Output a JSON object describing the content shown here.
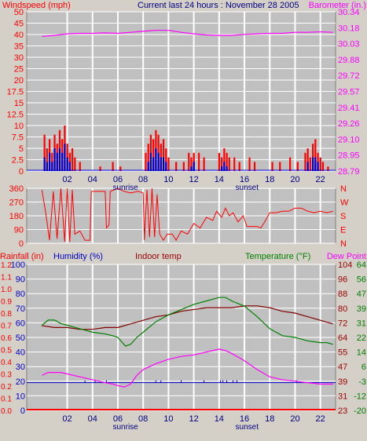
{
  "colors": {
    "bg": "#d4d0c8",
    "plot_bg": "#c0c0c0",
    "grid": "#ffffff",
    "red": "#ff0000",
    "blue": "#0000cc",
    "magenta": "#ff00ff",
    "green": "#008000",
    "darkred": "#800000",
    "maroon": "#990000",
    "purple": "#8000ff",
    "navy": "#000080"
  },
  "header": {
    "wind_label": "Windspeed (mph)",
    "title": "Current last 24 hours : November 28 2005",
    "baro_label": "Barometer (in.)"
  },
  "bottom_labels": {
    "rain": "Rainfall (in)",
    "humidity": "Humidity (%)",
    "indoor": "Indoor temp",
    "temperature": "Temperature (°F)",
    "dewpoint": "Dew Point"
  },
  "x_axis": {
    "ticks": [
      "02",
      "04",
      "06",
      "08",
      "10",
      "12",
      "14",
      "16",
      "18",
      "20",
      "22"
    ],
    "sunrise": "sunrise",
    "sunset": "sunset",
    "sunrise_hour": 6.6,
    "sunset_hour": 16.2
  },
  "chart_data": [
    {
      "type": "bar",
      "name": "wind-panel",
      "y_left_ticks": [
        "0",
        "2.5",
        "5",
        "7.5",
        "10",
        "12.5",
        "15",
        "17.5",
        "20",
        "25",
        "30",
        "35",
        "40",
        "45",
        "50"
      ],
      "y_right_ticks": [
        "28.79",
        "28.95",
        "29.10",
        "29.26",
        "29.41",
        "29.57",
        "29.72",
        "29.88",
        "30.03",
        "30.18",
        "30.34"
      ],
      "wind_gust_bars": [
        [
          0.2,
          8
        ],
        [
          0.4,
          5
        ],
        [
          0.6,
          7
        ],
        [
          0.8,
          4
        ],
        [
          1.0,
          8
        ],
        [
          1.2,
          6
        ],
        [
          1.4,
          9
        ],
        [
          1.6,
          7
        ],
        [
          1.8,
          10
        ],
        [
          2.0,
          6
        ],
        [
          2.2,
          4
        ],
        [
          2.4,
          5
        ],
        [
          2.6,
          3
        ],
        [
          3.0,
          2
        ],
        [
          4.6,
          1
        ],
        [
          5.6,
          2
        ],
        [
          6.2,
          1
        ],
        [
          8.2,
          4
        ],
        [
          8.4,
          6
        ],
        [
          8.6,
          8
        ],
        [
          8.8,
          7
        ],
        [
          9.0,
          9
        ],
        [
          9.2,
          8
        ],
        [
          9.4,
          6
        ],
        [
          9.6,
          7
        ],
        [
          9.8,
          5
        ],
        [
          10.0,
          3
        ],
        [
          10.6,
          2
        ],
        [
          11.2,
          2
        ],
        [
          11.6,
          4
        ],
        [
          11.8,
          3
        ],
        [
          12.0,
          4
        ],
        [
          12.4,
          4
        ],
        [
          12.8,
          3
        ],
        [
          14.0,
          4
        ],
        [
          14.2,
          3
        ],
        [
          14.4,
          5
        ],
        [
          14.6,
          4
        ],
        [
          14.8,
          3
        ],
        [
          15.2,
          3
        ],
        [
          15.6,
          2
        ],
        [
          16.4,
          3
        ],
        [
          16.8,
          2
        ],
        [
          18.2,
          2
        ],
        [
          18.8,
          2
        ],
        [
          19.6,
          3
        ],
        [
          20.2,
          2
        ],
        [
          20.8,
          4
        ],
        [
          21.0,
          5
        ],
        [
          21.2,
          3
        ],
        [
          21.4,
          6
        ],
        [
          21.6,
          7
        ],
        [
          21.8,
          4
        ],
        [
          22.0,
          3
        ],
        [
          22.2,
          2
        ],
        [
          22.6,
          1
        ]
      ],
      "wind_speed_bars": [
        [
          0.2,
          3
        ],
        [
          0.4,
          2
        ],
        [
          0.6,
          4
        ],
        [
          0.8,
          2
        ],
        [
          1.0,
          5
        ],
        [
          1.2,
          4
        ],
        [
          1.4,
          5
        ],
        [
          1.6,
          4
        ],
        [
          1.8,
          6
        ],
        [
          2.0,
          3
        ],
        [
          2.2,
          2
        ],
        [
          8.4,
          2
        ],
        [
          8.6,
          4
        ],
        [
          8.8,
          3
        ],
        [
          9.0,
          5
        ],
        [
          9.2,
          4
        ],
        [
          9.4,
          3
        ],
        [
          9.6,
          3
        ],
        [
          9.8,
          2
        ],
        [
          11.8,
          1
        ],
        [
          12.0,
          2
        ],
        [
          14.2,
          1
        ],
        [
          14.4,
          2
        ],
        [
          14.6,
          1
        ],
        [
          21.0,
          2
        ],
        [
          21.4,
          3
        ],
        [
          21.6,
          3
        ],
        [
          21.8,
          2
        ]
      ],
      "barometer": [
        [
          0.0,
          30.1
        ],
        [
          1.0,
          30.11
        ],
        [
          2.0,
          30.125
        ],
        [
          3.0,
          30.13
        ],
        [
          4.0,
          30.13
        ],
        [
          5.0,
          30.135
        ],
        [
          6.0,
          30.13
        ],
        [
          7.0,
          30.14
        ],
        [
          8.0,
          30.15
        ],
        [
          9.0,
          30.16
        ],
        [
          10.0,
          30.16
        ],
        [
          11.0,
          30.14
        ],
        [
          12.0,
          30.125
        ],
        [
          13.0,
          30.115
        ],
        [
          14.0,
          30.11
        ],
        [
          15.0,
          30.11
        ],
        [
          16.0,
          30.12
        ],
        [
          17.0,
          30.125
        ],
        [
          18.0,
          30.13
        ],
        [
          19.0,
          30.13
        ],
        [
          20.0,
          30.14
        ],
        [
          21.0,
          30.14
        ],
        [
          22.0,
          30.145
        ],
        [
          23.0,
          30.14
        ]
      ]
    },
    {
      "type": "line",
      "name": "wind-direction-panel",
      "y_left_ticks": [
        "0",
        "90",
        "180",
        "270",
        "360"
      ],
      "y_right_ticks": [
        "N",
        "E",
        "S",
        "W",
        "N"
      ],
      "direction": [
        [
          0.0,
          350
        ],
        [
          0.3,
          200
        ],
        [
          0.6,
          20
        ],
        [
          0.9,
          340
        ],
        [
          1.2,
          30
        ],
        [
          1.5,
          360
        ],
        [
          1.8,
          10
        ],
        [
          2.0,
          360
        ],
        [
          2.2,
          10
        ],
        [
          2.4,
          350
        ],
        [
          2.6,
          60
        ],
        [
          3.0,
          80
        ],
        [
          3.4,
          20
        ],
        [
          3.8,
          20
        ],
        [
          3.9,
          340
        ],
        [
          5.0,
          340
        ],
        [
          5.1,
          100
        ],
        [
          5.3,
          120
        ],
        [
          5.4,
          340
        ],
        [
          6.0,
          360
        ],
        [
          6.5,
          340
        ],
        [
          7.0,
          330
        ],
        [
          7.6,
          340
        ],
        [
          8.0,
          330
        ],
        [
          8.1,
          20
        ],
        [
          8.3,
          350
        ],
        [
          8.5,
          40
        ],
        [
          8.7,
          360
        ],
        [
          8.9,
          40
        ],
        [
          9.1,
          320
        ],
        [
          9.3,
          60
        ],
        [
          9.6,
          20
        ],
        [
          9.9,
          60
        ],
        [
          10.3,
          60
        ],
        [
          10.6,
          20
        ],
        [
          11.0,
          80
        ],
        [
          11.5,
          60
        ],
        [
          12.0,
          130
        ],
        [
          12.5,
          100
        ],
        [
          13.0,
          170
        ],
        [
          13.5,
          150
        ],
        [
          13.8,
          210
        ],
        [
          14.2,
          170
        ],
        [
          14.5,
          230
        ],
        [
          14.8,
          180
        ],
        [
          15.1,
          200
        ],
        [
          15.5,
          140
        ],
        [
          15.9,
          180
        ],
        [
          16.2,
          110
        ],
        [
          17.0,
          110
        ],
        [
          17.3,
          100
        ],
        [
          17.6,
          140
        ],
        [
          18.0,
          200
        ],
        [
          18.5,
          200
        ],
        [
          19.0,
          210
        ],
        [
          19.5,
          210
        ],
        [
          20.0,
          230
        ],
        [
          20.5,
          230
        ],
        [
          21.0,
          210
        ],
        [
          21.5,
          200
        ],
        [
          22.0,
          210
        ],
        [
          22.5,
          200
        ],
        [
          23.0,
          210
        ]
      ]
    },
    {
      "type": "line",
      "name": "temp-humidity-panel",
      "y_rain_ticks": [
        "0.0",
        "0.1",
        "0.2",
        "0.3",
        "0.4",
        "0.5",
        "0.6",
        "0.7",
        "0.8",
        "0.9",
        "1.0",
        "1.1",
        "1.2"
      ],
      "y_humidity_ticks": [
        "0",
        "10",
        "20",
        "30",
        "40",
        "50",
        "60",
        "70",
        "80",
        "90",
        "100"
      ],
      "y_indoor_ticks": [
        "23",
        "31",
        "39",
        "47",
        "55",
        "64",
        "72",
        "80",
        "88",
        "96",
        "104"
      ],
      "y_temp_ticks": [
        "-20",
        "-12",
        "-3",
        "6",
        "14",
        "22",
        "31",
        "39",
        "47",
        "56",
        "64"
      ],
      "temperature": [
        [
          0.0,
          29
        ],
        [
          0.5,
          32
        ],
        [
          1.0,
          32
        ],
        [
          1.5,
          30
        ],
        [
          2.0,
          29
        ],
        [
          3.0,
          27
        ],
        [
          4.0,
          25
        ],
        [
          5.0,
          24
        ],
        [
          5.6,
          23
        ],
        [
          6.0,
          22
        ],
        [
          6.6,
          17
        ],
        [
          7.0,
          18
        ],
        [
          7.5,
          22
        ],
        [
          8.0,
          25
        ],
        [
          9.0,
          31
        ],
        [
          10.0,
          35
        ],
        [
          11.0,
          38
        ],
        [
          12.0,
          41
        ],
        [
          13.0,
          43
        ],
        [
          14.0,
          45
        ],
        [
          14.5,
          45
        ],
        [
          15.0,
          43
        ],
        [
          16.0,
          40
        ],
        [
          17.0,
          34
        ],
        [
          18.0,
          27
        ],
        [
          19.0,
          23
        ],
        [
          20.0,
          22
        ],
        [
          21.0,
          20
        ],
        [
          22.0,
          19
        ],
        [
          22.5,
          19
        ],
        [
          23.0,
          18
        ]
      ],
      "indoor_temp": [
        [
          0.0,
          70
        ],
        [
          1.0,
          69
        ],
        [
          2.0,
          69
        ],
        [
          3.0,
          68
        ],
        [
          4.0,
          68
        ],
        [
          5.0,
          69
        ],
        [
          6.0,
          69
        ],
        [
          7.0,
          71
        ],
        [
          8.0,
          73
        ],
        [
          9.0,
          75
        ],
        [
          10.0,
          76
        ],
        [
          11.0,
          78
        ],
        [
          12.0,
          79
        ],
        [
          13.0,
          80
        ],
        [
          14.0,
          80
        ],
        [
          15.0,
          80
        ],
        [
          16.0,
          81
        ],
        [
          17.0,
          81
        ],
        [
          18.0,
          80
        ],
        [
          19.0,
          78
        ],
        [
          20.0,
          77
        ],
        [
          21.0,
          75
        ],
        [
          22.0,
          73
        ],
        [
          23.0,
          71
        ]
      ],
      "humidity": [
        [
          0.0,
          24
        ],
        [
          0.5,
          26
        ],
        [
          1.0,
          26
        ],
        [
          1.5,
          26
        ],
        [
          2.0,
          25
        ],
        [
          3.0,
          23
        ],
        [
          4.0,
          21
        ],
        [
          5.0,
          19
        ],
        [
          5.6,
          18
        ],
        [
          6.0,
          17
        ],
        [
          6.5,
          16
        ],
        [
          7.0,
          18
        ],
        [
          7.5,
          24
        ],
        [
          8.0,
          28
        ],
        [
          9.0,
          32
        ],
        [
          10.0,
          35
        ],
        [
          11.0,
          37
        ],
        [
          12.0,
          38
        ],
        [
          13.0,
          40
        ],
        [
          13.5,
          41
        ],
        [
          14.0,
          42
        ],
        [
          14.5,
          41
        ],
        [
          15.0,
          39
        ],
        [
          16.0,
          34
        ],
        [
          17.0,
          28
        ],
        [
          18.0,
          23
        ],
        [
          19.0,
          21
        ],
        [
          20.0,
          20
        ],
        [
          21.0,
          19
        ],
        [
          22.0,
          18
        ],
        [
          23.0,
          18
        ]
      ],
      "dew_point_level": 19,
      "dew_point_spikes": [
        3.4,
        4.2,
        5.1,
        9.0,
        9.4,
        11.0,
        12.8,
        14.1,
        14.3,
        14.6,
        15.1,
        15.4,
        20.1
      ],
      "rain_level": 0
    }
  ]
}
